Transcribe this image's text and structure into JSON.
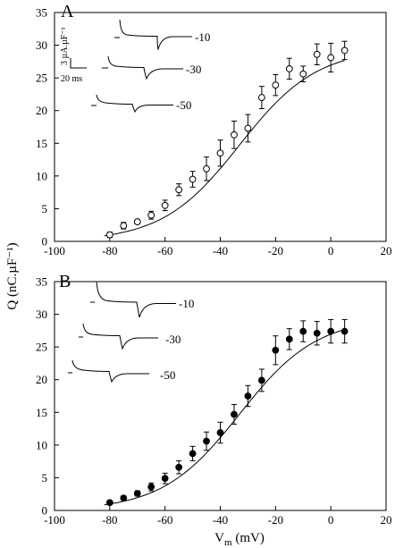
{
  "figure": {
    "ylabel": "Q (nC.µF⁻¹)",
    "xlabel_main": "V",
    "xlabel_sub": "m",
    "xlabel_unit": " (mV)"
  },
  "chart_data": [
    {
      "type": "scatter",
      "panel_label": "A",
      "marker": "open-circle",
      "xlim": [
        -100,
        20
      ],
      "ylim": [
        0,
        35
      ],
      "xticks": [
        -100,
        -80,
        -60,
        -40,
        -20,
        0,
        20
      ],
      "yticks": [
        0,
        5,
        10,
        15,
        20,
        25,
        30,
        35
      ],
      "series": [
        {
          "points": [
            {
              "x": -80,
              "y": 1.0,
              "err": 0.4
            },
            {
              "x": -75,
              "y": 2.4,
              "err": 0.5
            },
            {
              "x": -70,
              "y": 3.0,
              "err": 0.3
            },
            {
              "x": -65,
              "y": 4.0,
              "err": 0.6
            },
            {
              "x": -60,
              "y": 5.5,
              "err": 0.8
            },
            {
              "x": -55,
              "y": 7.9,
              "err": 0.9
            },
            {
              "x": -50,
              "y": 9.5,
              "err": 1.2
            },
            {
              "x": -45,
              "y": 11.1,
              "err": 1.8
            },
            {
              "x": -40,
              "y": 13.5,
              "err": 2.0
            },
            {
              "x": -35,
              "y": 16.3,
              "err": 2.1
            },
            {
              "x": -30,
              "y": 17.3,
              "err": 2.1
            },
            {
              "x": -25,
              "y": 22.0,
              "err": 1.7
            },
            {
              "x": -20,
              "y": 23.9,
              "err": 1.6
            },
            {
              "x": -15,
              "y": 26.4,
              "err": 1.6
            },
            {
              "x": -10,
              "y": 25.6,
              "err": 1.2
            },
            {
              "x": -5,
              "y": 28.6,
              "err": 1.6
            },
            {
              "x": 0,
              "y": 28.1,
              "err": 2.2
            },
            {
              "x": 5,
              "y": 29.2,
              "err": 1.4
            }
          ],
          "fit": {
            "qmax": 29.5,
            "vhalf": -33,
            "k": 14
          }
        }
      ],
      "inset_labels": [
        "-10",
        "-30",
        "-50"
      ],
      "scalebar": {
        "amp": "3 µA.µF⁻¹",
        "time": "20 ms"
      }
    },
    {
      "type": "scatter",
      "panel_label": "B",
      "marker": "filled-circle",
      "xlim": [
        -100,
        20
      ],
      "ylim": [
        0,
        35
      ],
      "xticks": [
        -100,
        -80,
        -60,
        -40,
        -20,
        0,
        20
      ],
      "yticks": [
        0,
        5,
        10,
        15,
        20,
        25,
        30,
        35
      ],
      "series": [
        {
          "points": [
            {
              "x": -80,
              "y": 1.2,
              "err": 0.3
            },
            {
              "x": -75,
              "y": 1.9,
              "err": 0.3
            },
            {
              "x": -70,
              "y": 2.6,
              "err": 0.4
            },
            {
              "x": -65,
              "y": 3.6,
              "err": 0.6
            },
            {
              "x": -60,
              "y": 4.9,
              "err": 0.8
            },
            {
              "x": -55,
              "y": 6.6,
              "err": 1.0
            },
            {
              "x": -50,
              "y": 8.7,
              "err": 1.1
            },
            {
              "x": -45,
              "y": 10.6,
              "err": 1.4
            },
            {
              "x": -40,
              "y": 11.9,
              "err": 1.6
            },
            {
              "x": -35,
              "y": 14.7,
              "err": 1.5
            },
            {
              "x": -30,
              "y": 17.5,
              "err": 1.6
            },
            {
              "x": -25,
              "y": 19.9,
              "err": 1.7
            },
            {
              "x": -20,
              "y": 24.5,
              "err": 2.2
            },
            {
              "x": -15,
              "y": 26.2,
              "err": 1.6
            },
            {
              "x": -10,
              "y": 27.4,
              "err": 1.6
            },
            {
              "x": -5,
              "y": 27.1,
              "err": 1.8
            },
            {
              "x": 0,
              "y": 27.4,
              "err": 1.8
            },
            {
              "x": 5,
              "y": 27.4,
              "err": 1.8
            }
          ],
          "fit": {
            "qmax": 29.5,
            "vhalf": -33,
            "k": 14
          }
        }
      ],
      "inset_labels": [
        "-10",
        "-30",
        "-50"
      ]
    }
  ]
}
